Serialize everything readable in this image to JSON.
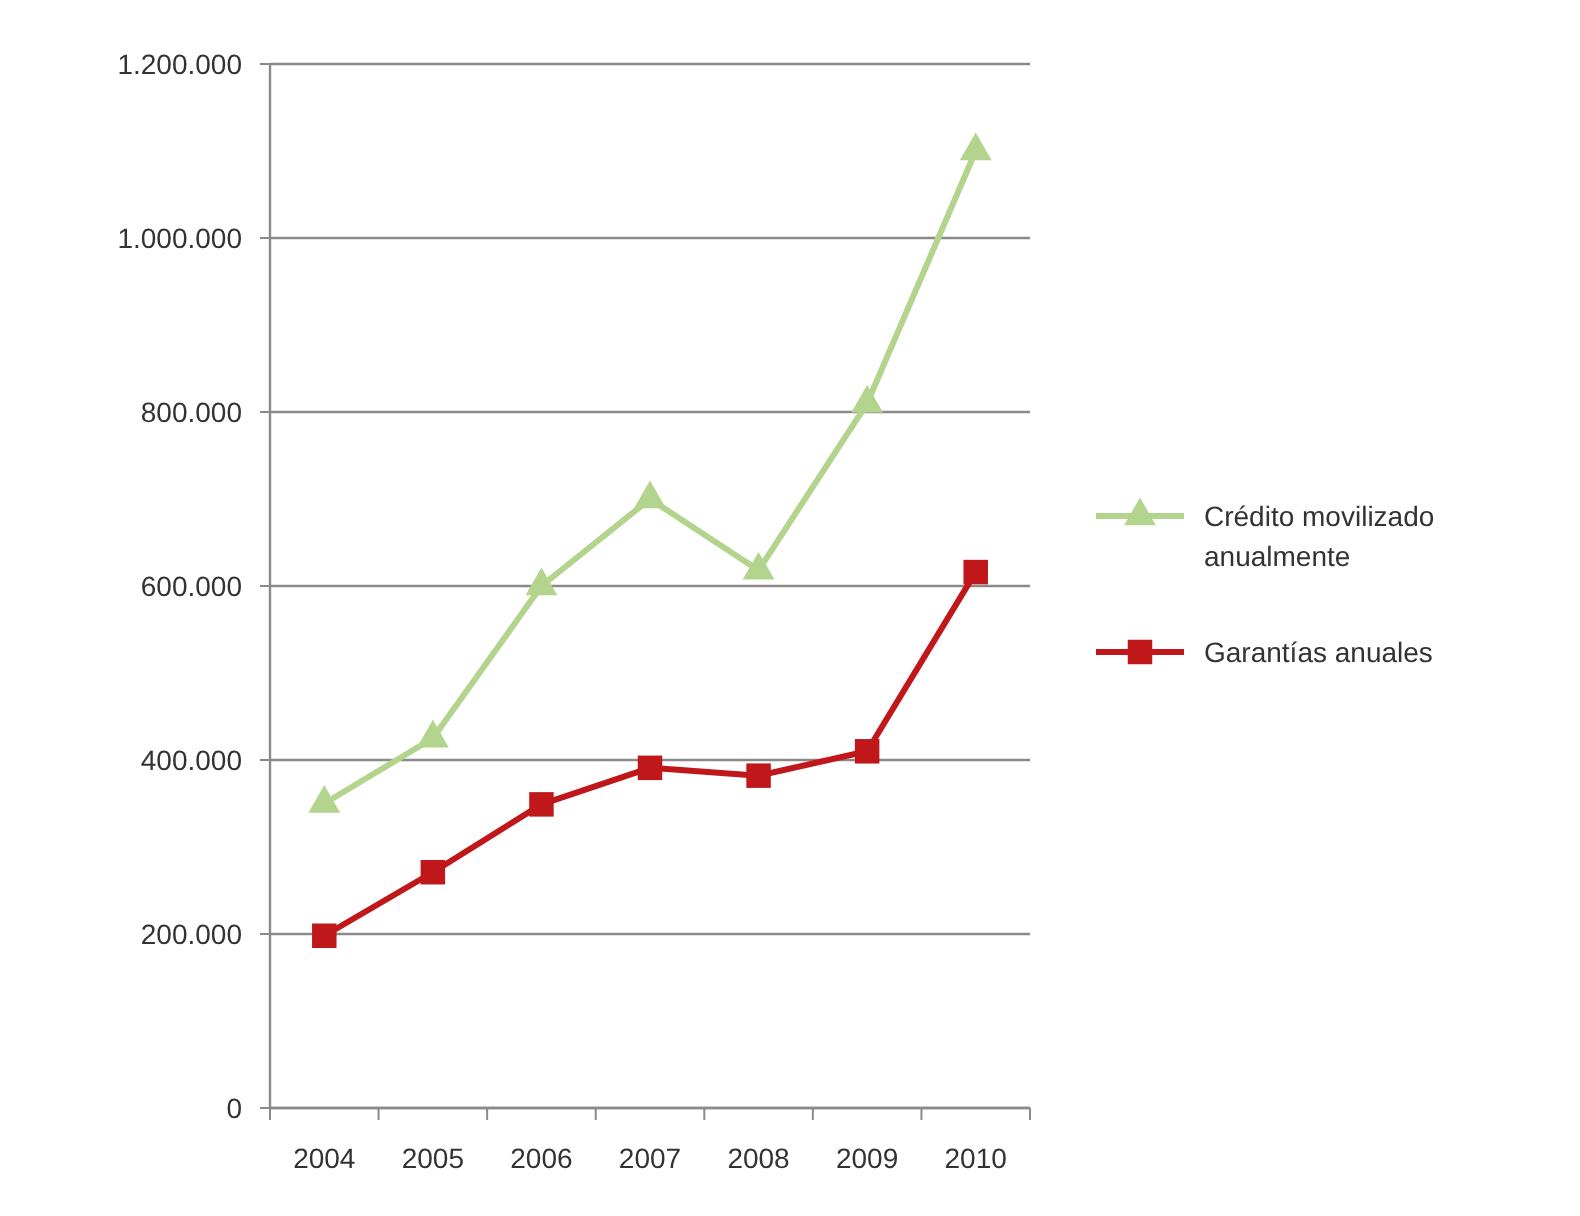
{
  "chart_data": {
    "type": "line",
    "categories": [
      "2004",
      "2005",
      "2006",
      "2007",
      "2008",
      "2009",
      "2010"
    ],
    "series": [
      {
        "name": "Crédito movilizado anualmente",
        "color": "#b3d48c",
        "marker": "triangle",
        "values": [
          350000,
          425000,
          600000,
          700000,
          618000,
          810000,
          1100000
        ]
      },
      {
        "name": "Garantías anuales",
        "color": "#c0171b",
        "marker": "square",
        "values": [
          198000,
          271000,
          349000,
          391000,
          382000,
          410000,
          616000
        ]
      }
    ],
    "ylim": [
      0,
      1200000
    ],
    "yticks": [
      {
        "value": 0,
        "label": "0"
      },
      {
        "value": 200000,
        "label": "200.000"
      },
      {
        "value": 400000,
        "label": "400.000"
      },
      {
        "value": 600000,
        "label": "600.000"
      },
      {
        "value": 800000,
        "label": "800.000"
      },
      {
        "value": 1000000,
        "label": "1.000.000"
      },
      {
        "value": 1200000,
        "label": "1.200.000"
      }
    ],
    "grid": "y",
    "legend": "right",
    "line_style": "solid"
  }
}
